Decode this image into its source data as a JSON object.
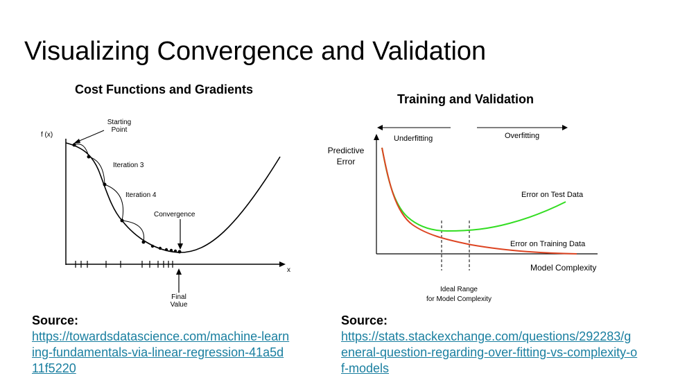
{
  "title": "Visualizing Convergence and Validation",
  "left_panel": {
    "title": "Cost Functions and Gradients",
    "labels": {
      "y_axis": "f (x)",
      "x_axis": "x",
      "starting_point": [
        "Starting",
        "Point"
      ],
      "iteration3": "Iteration 3",
      "iteration4": "Iteration 4",
      "convergence": "Convergence",
      "final_value": [
        "Final",
        "Value"
      ]
    },
    "source_label": "Source:",
    "source_url_lines": "https://towardsdatascience.com/machine-learn\ning-fundamentals-via-linear-regression-41a5d\n11f5220"
  },
  "right_panel": {
    "title": "Training and Validation",
    "labels": {
      "y_axis": [
        "Predictive",
        "Error"
      ],
      "x_axis": "Model Complexity",
      "underfitting": "Underfitting",
      "overfitting": "Overfitting",
      "test_curve": "Error on Test Data",
      "train_curve": "Error on Training Data",
      "ideal_range": [
        "Ideal Range",
        "for Model Complexity"
      ]
    },
    "colors": {
      "test": "#33dd22",
      "train": "#dd4422"
    },
    "source_label": "Source:",
    "source_url_lines": "https://stats.stackexchange.com/questions/292283/g\neneral-question-regarding-over-fitting-vs-complexity-o\nf-models"
  }
}
